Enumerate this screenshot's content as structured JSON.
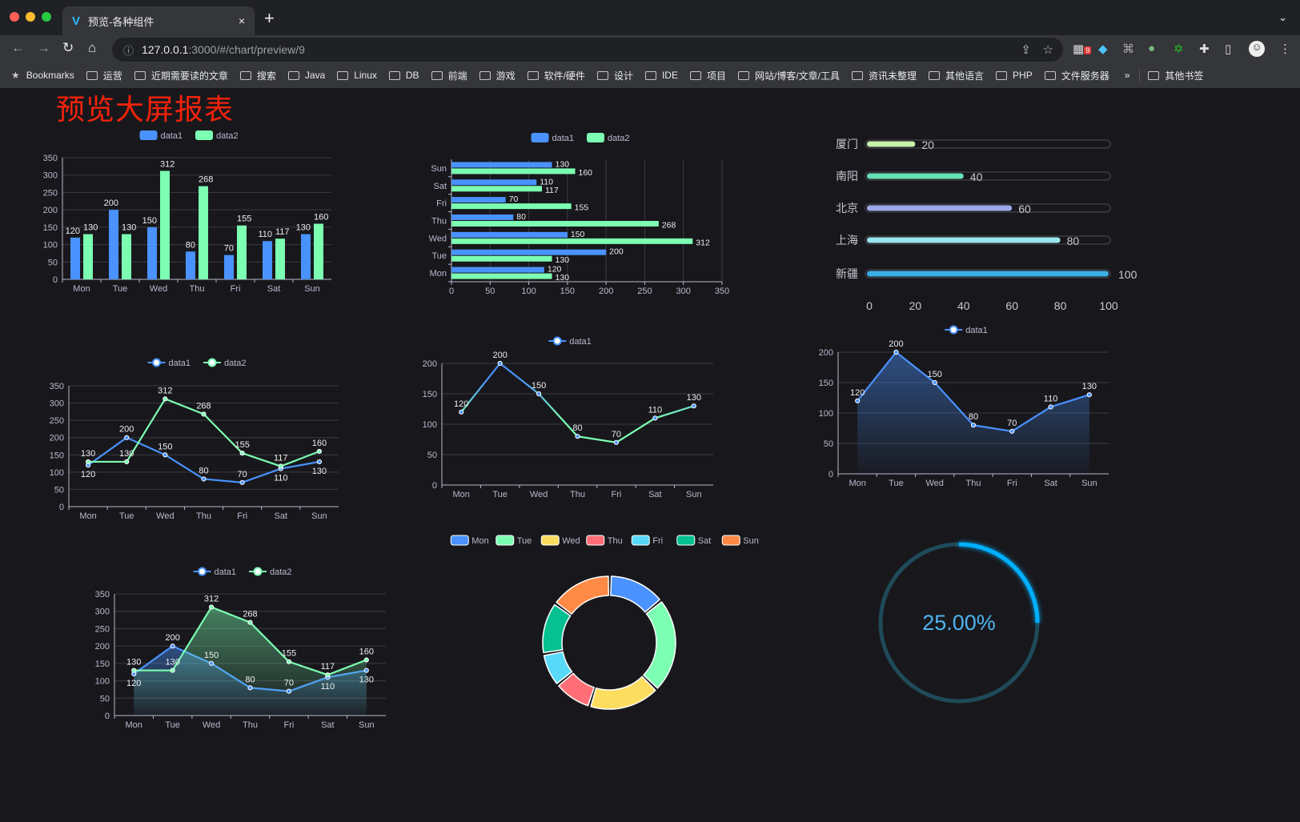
{
  "browser": {
    "tab_title": "预览-各种组件",
    "tab_close": "×",
    "new_tab": "+",
    "url_host": "127.0.0.1",
    "url_path": ":3000/#/chart/preview/9",
    "extension_badge": "9",
    "bookmarks": [
      "Bookmarks",
      "运营",
      "近期需要读的文章",
      "搜索",
      "Java",
      "Linux",
      "DB",
      "前端",
      "游戏",
      "软件/硬件",
      "设计",
      "IDE",
      "项目",
      "网站/博客/文章/工具",
      "资讯未整理",
      "其他语言",
      "PHP",
      "文件服务器"
    ],
    "bookmarks_more": "»",
    "other_bookmarks": "其他书签"
  },
  "page": {
    "title": "预览大屏报表",
    "title_color": "#f5220b"
  },
  "colors": {
    "palette": [
      "#4992ff",
      "#7cffb2",
      "#fddd60",
      "#ff6e76",
      "#58d9f9",
      "#05c091",
      "#ff8a45"
    ],
    "background": "#18181c"
  },
  "chart_data": [
    {
      "type": "bar",
      "orientation": "vertical",
      "categories": [
        "Mon",
        "Tue",
        "Wed",
        "Thu",
        "Fri",
        "Sat",
        "Sun"
      ],
      "ylim": [
        0,
        350
      ],
      "yticks": [
        0,
        50,
        100,
        150,
        200,
        250,
        300,
        350
      ],
      "legend": "top-center",
      "grid": true,
      "series": [
        {
          "name": "data1",
          "color": "#4992ff",
          "values": [
            120,
            200,
            150,
            80,
            70,
            110,
            130
          ]
        },
        {
          "name": "data2",
          "color": "#7cffb2",
          "values": [
            130,
            130,
            312,
            268,
            155,
            117,
            160
          ]
        }
      ]
    },
    {
      "type": "bar",
      "orientation": "horizontal",
      "categories": [
        "Mon",
        "Tue",
        "Wed",
        "Thu",
        "Fri",
        "Sat",
        "Sun"
      ],
      "xlim": [
        0,
        350
      ],
      "xticks": [
        0,
        50,
        100,
        150,
        200,
        250,
        300,
        350
      ],
      "legend": "top-center",
      "grid": true,
      "series": [
        {
          "name": "data1",
          "color": "#4992ff",
          "values": [
            120,
            200,
            150,
            80,
            70,
            110,
            130
          ]
        },
        {
          "name": "data2",
          "color": "#7cffb2",
          "values": [
            130,
            130,
            312,
            268,
            155,
            117,
            160
          ]
        }
      ]
    },
    {
      "type": "bar",
      "orientation": "horizontal",
      "style": "progress",
      "categories": [
        "厦门",
        "南阳",
        "北京",
        "上海",
        "新疆"
      ],
      "values": [
        20,
        40,
        60,
        80,
        100
      ],
      "colors": [
        "#c8f0a8",
        "#66e0b4",
        "#9fa6ea",
        "#98e6ec",
        "#3aaee6"
      ],
      "xlim": [
        0,
        100
      ],
      "xticks": [
        0,
        20,
        40,
        60,
        80,
        100
      ]
    },
    {
      "type": "line",
      "categories": [
        "Mon",
        "Tue",
        "Wed",
        "Thu",
        "Fri",
        "Sat",
        "Sun"
      ],
      "ylim": [
        0,
        350
      ],
      "yticks": [
        0,
        50,
        100,
        150,
        200,
        250,
        300,
        350
      ],
      "legend": "top-center",
      "grid": true,
      "series": [
        {
          "name": "data1",
          "color": "#4992ff",
          "values": [
            120,
            200,
            150,
            80,
            70,
            110,
            130
          ]
        },
        {
          "name": "data2",
          "color": "#7cffb2",
          "values": [
            130,
            130,
            312,
            268,
            155,
            117,
            160
          ]
        }
      ]
    },
    {
      "type": "line",
      "smooth": true,
      "categories": [
        "Mon",
        "Tue",
        "Wed",
        "Thu",
        "Fri",
        "Sat",
        "Sun"
      ],
      "ylim": [
        0,
        200
      ],
      "yticks": [
        0,
        50,
        100,
        150,
        200
      ],
      "legend": "top-center",
      "grid": true,
      "series": [
        {
          "name": "data1",
          "color": "#4992ff",
          "values": [
            120,
            200,
            150,
            80,
            70,
            110,
            130
          ]
        }
      ]
    },
    {
      "type": "area",
      "categories": [
        "Mon",
        "Tue",
        "Wed",
        "Thu",
        "Fri",
        "Sat",
        "Sun"
      ],
      "ylim": [
        0,
        200
      ],
      "yticks": [
        0,
        50,
        100,
        150,
        200
      ],
      "legend": "top-center",
      "grid": true,
      "series": [
        {
          "name": "data1",
          "color": "#4992ff",
          "values": [
            120,
            200,
            150,
            80,
            70,
            110,
            130
          ]
        }
      ]
    },
    {
      "type": "area",
      "categories": [
        "Mon",
        "Tue",
        "Wed",
        "Thu",
        "Fri",
        "Sat",
        "Sun"
      ],
      "ylim": [
        0,
        350
      ],
      "yticks": [
        0,
        50,
        100,
        150,
        200,
        250,
        300,
        350
      ],
      "legend": "top-center",
      "grid": true,
      "series": [
        {
          "name": "data1",
          "color": "#4992ff",
          "values": [
            120,
            200,
            150,
            80,
            70,
            110,
            130
          ]
        },
        {
          "name": "data2",
          "color": "#7cffb2",
          "values": [
            130,
            130,
            312,
            268,
            155,
            117,
            160
          ]
        }
      ]
    },
    {
      "type": "pie",
      "style": "donut",
      "categories": [
        "Mon",
        "Tue",
        "Wed",
        "Thu",
        "Fri",
        "Sat",
        "Sun"
      ],
      "values": [
        120,
        200,
        150,
        80,
        70,
        110,
        130
      ],
      "colors": [
        "#4992ff",
        "#7cffb2",
        "#fddd60",
        "#ff6e76",
        "#58d9f9",
        "#05c091",
        "#ff8a45"
      ],
      "legend": "top-center"
    },
    {
      "type": "gauge",
      "style": "ring",
      "value": 25,
      "max": 100,
      "label": "25.00%",
      "color": "#00b0ff",
      "track_color": "#1f4a59"
    }
  ]
}
